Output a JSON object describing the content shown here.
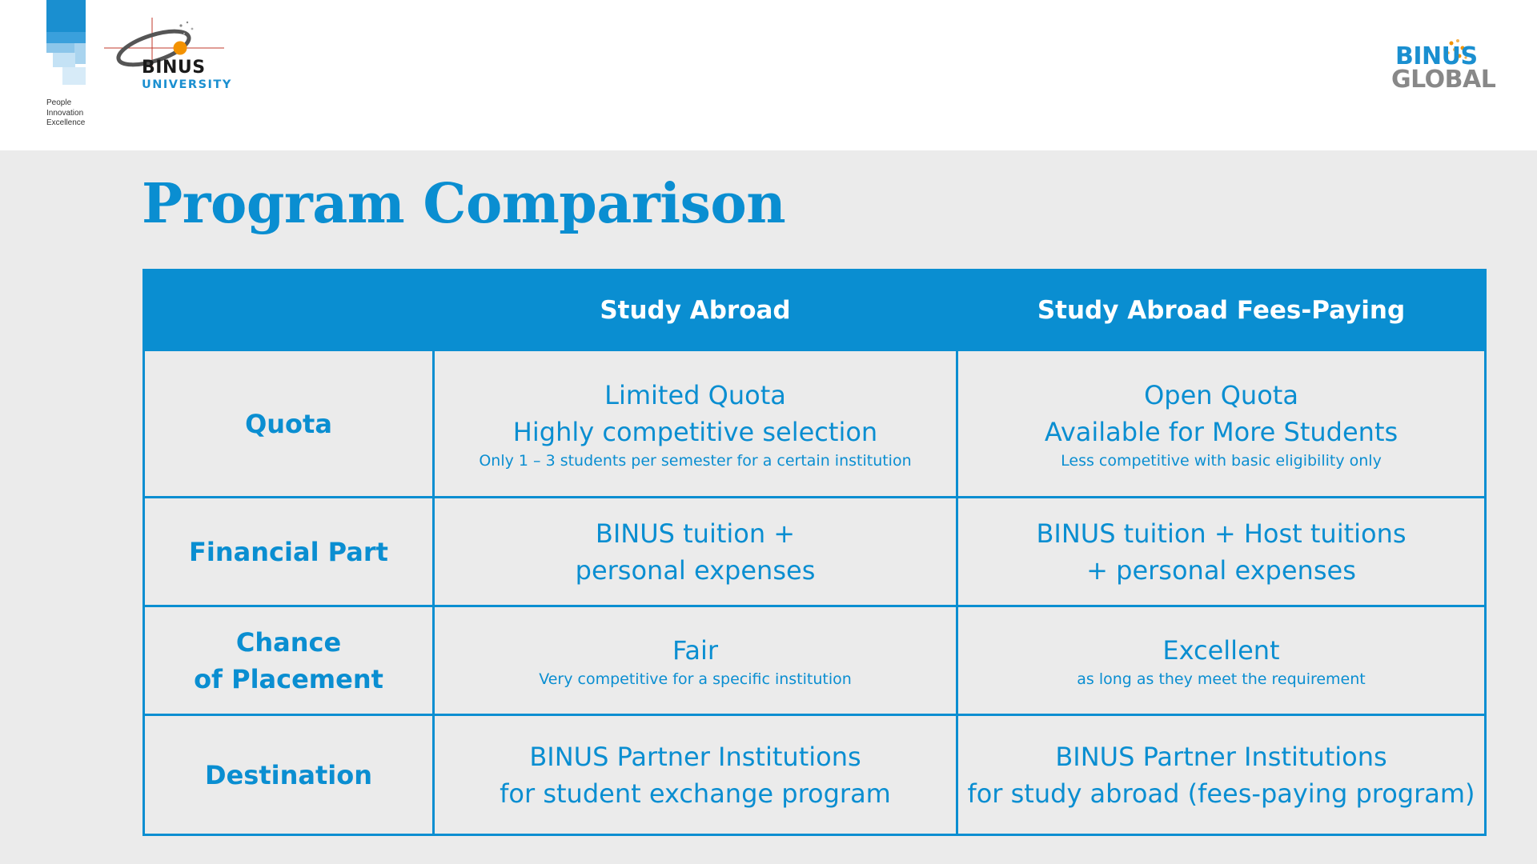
{
  "header": {
    "tagline": [
      "People",
      "Innovation",
      "Excellence"
    ],
    "university_logo": {
      "line1": "BINUS",
      "line2": "UNIVERSITY"
    },
    "global_logo": {
      "line1": "BINUS",
      "line2": "GLOBAL"
    },
    "colors": {
      "brand_blue": "#0a8ed1",
      "logo_grey": "#888888",
      "orange": "#f39200"
    }
  },
  "title": "Program Comparison",
  "table": {
    "columns": [
      "",
      "Study Abroad",
      "Study Abroad Fees-Paying"
    ],
    "rows": [
      {
        "label": [
          "Quota"
        ],
        "study_abroad": {
          "main": [
            "Limited Quota",
            "Highly competitive selection"
          ],
          "note": "Only 1 – 3 students per semester for a certain institution"
        },
        "fees_paying": {
          "main": [
            "Open Quota",
            "Available for More Students"
          ],
          "note": "Less competitive with basic eligibility only"
        }
      },
      {
        "label": [
          "Financial Part"
        ],
        "study_abroad": {
          "main": [
            "BINUS tuition +",
            "personal expenses"
          ]
        },
        "fees_paying": {
          "main": [
            "BINUS tuition + Host tuitions",
            "+ personal expenses"
          ]
        }
      },
      {
        "label": [
          "Chance",
          "of Placement"
        ],
        "study_abroad": {
          "main": [
            "Fair"
          ],
          "note": "Very competitive for a specific institution"
        },
        "fees_paying": {
          "main": [
            "Excellent"
          ],
          "note": "as long as they meet the requirement"
        }
      },
      {
        "label": [
          "Destination"
        ],
        "study_abroad": {
          "main": [
            "BINUS Partner Institutions",
            "for student exchange program"
          ]
        },
        "fees_paying": {
          "main": [
            "BINUS Partner Institutions",
            "for study abroad (fees-paying program)"
          ]
        }
      }
    ]
  }
}
